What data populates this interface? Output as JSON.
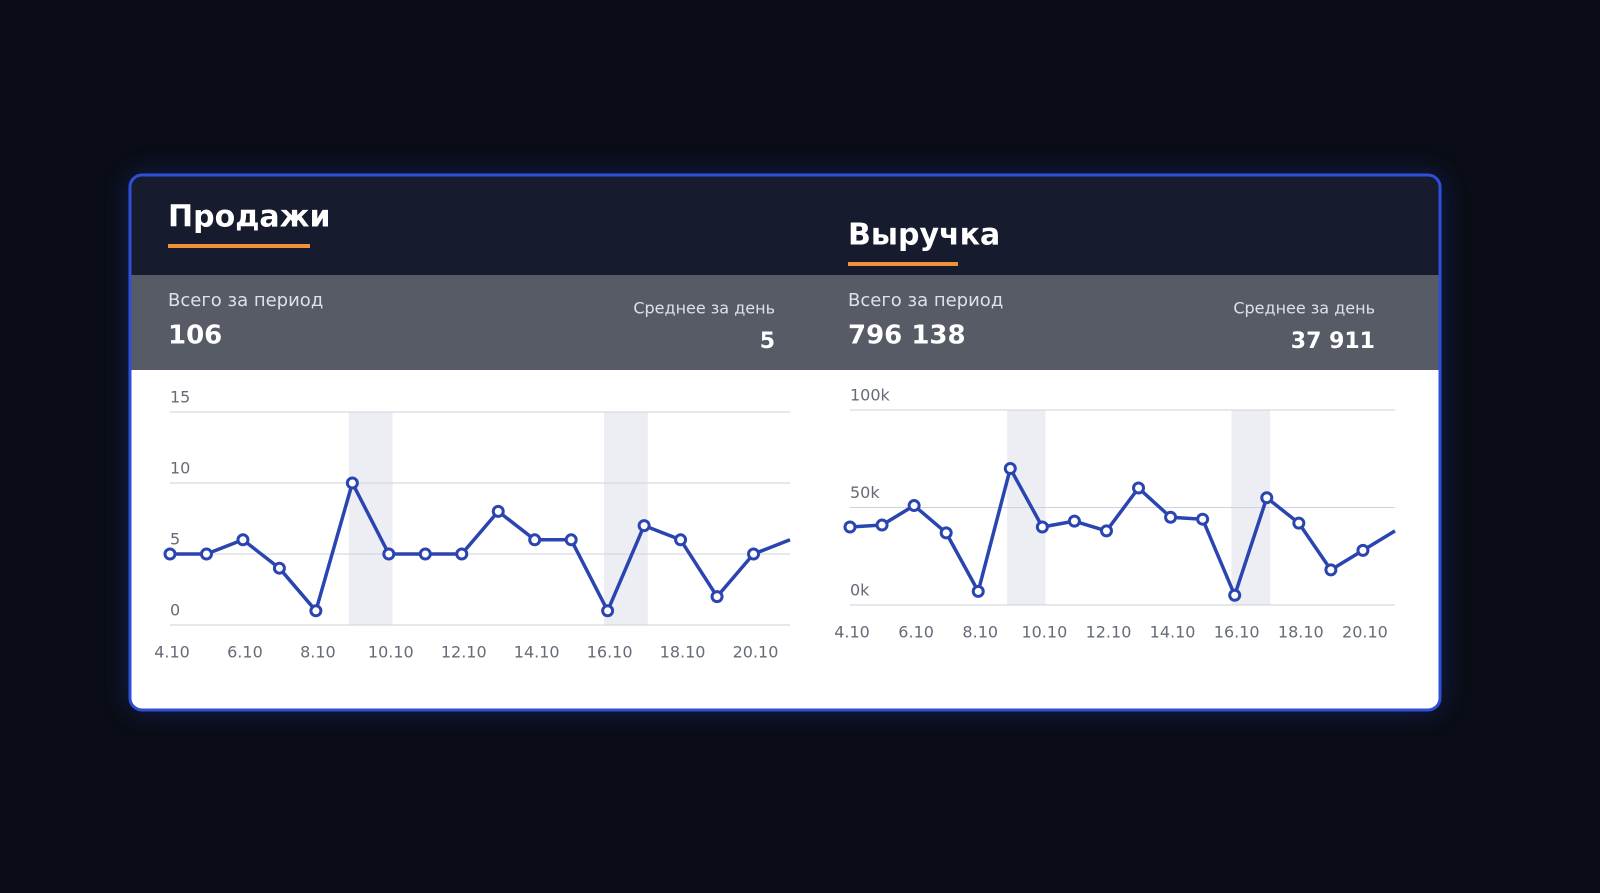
{
  "chart_data": [
    {
      "type": "line",
      "title": "Продажи",
      "total_label": "Всего за период",
      "total": "106",
      "avg_label": "Среднее за день",
      "avg": "5",
      "categories": [
        "4.10",
        null,
        "6.10",
        null,
        "8.10",
        null,
        "10.10",
        null,
        "12.10",
        null,
        "14.10",
        null,
        "16.10",
        null,
        "18.10",
        null,
        "20.10",
        null
      ],
      "values": [
        5,
        5,
        6,
        4,
        1,
        10,
        5,
        5,
        5,
        8,
        6,
        6,
        1,
        7,
        6,
        2,
        5,
        6
      ],
      "color": "#2a44b0",
      "ylim": [
        0,
        15
      ],
      "yticks": [
        0,
        5,
        10,
        15
      ],
      "grid": true
    },
    {
      "type": "line",
      "title": "Выручка",
      "total_label": "Всего за период",
      "total": "796 138",
      "avg_label": "Среднее за день",
      "avg": "37 911",
      "categories": [
        "4.10",
        null,
        "6.10",
        null,
        "8.10",
        null,
        "10.10",
        null,
        "12.10",
        null,
        "14.10",
        null,
        "16.10",
        null,
        "18.10",
        null,
        "20.10",
        null
      ],
      "values": [
        40000,
        41000,
        51000,
        37000,
        7000,
        70000,
        40000,
        43000,
        38000,
        60000,
        45000,
        44000,
        5000,
        55000,
        42000,
        18000,
        28000,
        38000
      ],
      "color": "#2a44b0",
      "ylim": [
        0,
        100000
      ],
      "yticks": [
        {
          "value": 0,
          "label": "0k"
        },
        {
          "value": 50000,
          "label": "50k"
        },
        {
          "value": 100000,
          "label": "100k"
        }
      ],
      "grid": true
    }
  ]
}
